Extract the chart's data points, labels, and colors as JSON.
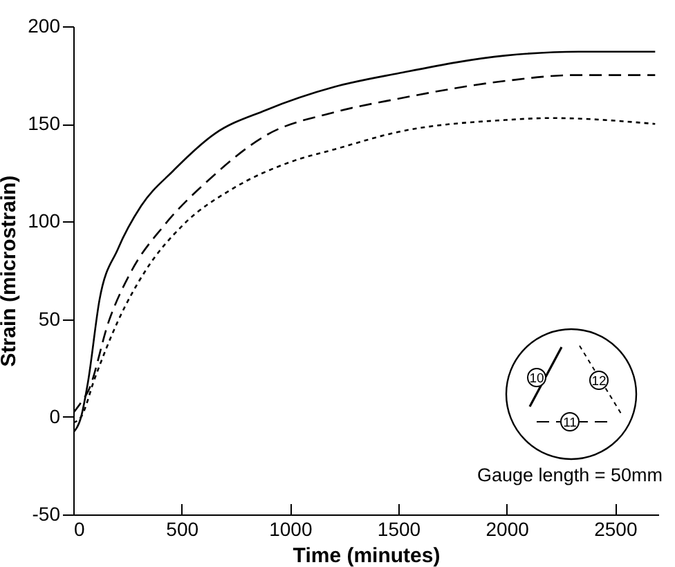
{
  "chart_data": {
    "type": "line",
    "xlabel": "Time (minutes)",
    "ylabel": "Strain (microstrain)",
    "xlim": [
      0,
      2700
    ],
    "ylim": [
      -50,
      200
    ],
    "xticks": [
      0,
      500,
      1000,
      1500,
      2000,
      2500
    ],
    "yticks": [
      -50,
      0,
      50,
      100,
      150,
      200
    ],
    "legend": "bottom right",
    "annotations": [
      "Gauge length = 50mm"
    ],
    "series": [
      {
        "name": "10",
        "color": "#000000",
        "line_style": "solid",
        "x": [
          0,
          36,
          68,
          121,
          206,
          313,
          461,
          653,
          887,
          1206,
          1504,
          1993,
          2333,
          2685
        ],
        "values": [
          -8,
          0,
          18,
          60,
          86,
          108,
          126,
          145,
          157,
          169,
          176,
          185,
          187,
          187
        ]
      },
      {
        "name": "11",
        "color": "#000000",
        "line_style": "dashed",
        "x": [
          0,
          40,
          68,
          164,
          270,
          419,
          632,
          887,
          1206,
          1504,
          1993,
          2312,
          2685
        ],
        "values": [
          2,
          8,
          13,
          49,
          75,
          98,
          122,
          144,
          156,
          163,
          172,
          175,
          175
        ]
      },
      {
        "name": "12",
        "color": "#000000",
        "line_style": "dotted",
        "x": [
          0,
          36,
          100,
          206,
          334,
          504,
          738,
          1015,
          1206,
          1504,
          1993,
          2205,
          2685
        ],
        "values": [
          -3,
          0,
          20,
          49,
          75,
          98,
          117,
          131,
          137,
          146,
          152,
          153,
          150
        ]
      }
    ]
  }
}
